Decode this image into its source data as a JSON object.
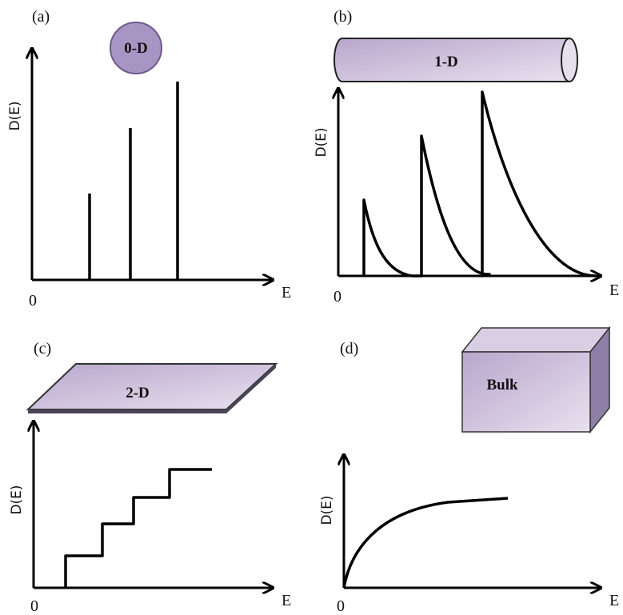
{
  "panels": [
    {
      "label": "(a)",
      "shape_label": "0-D",
      "y_axis": "D(E)",
      "x_axis": "E",
      "origin": "0"
    },
    {
      "label": "(b)",
      "shape_label": "1-D",
      "y_axis": "D(E)",
      "x_axis": "E",
      "origin": "0"
    },
    {
      "label": "(c)",
      "shape_label": "2-D",
      "y_axis": "D(E)",
      "x_axis": "E",
      "origin": "0"
    },
    {
      "label": "(d)",
      "shape_label": "Bulk",
      "y_axis": "D(E)",
      "x_axis": "E",
      "origin": "0"
    }
  ]
}
